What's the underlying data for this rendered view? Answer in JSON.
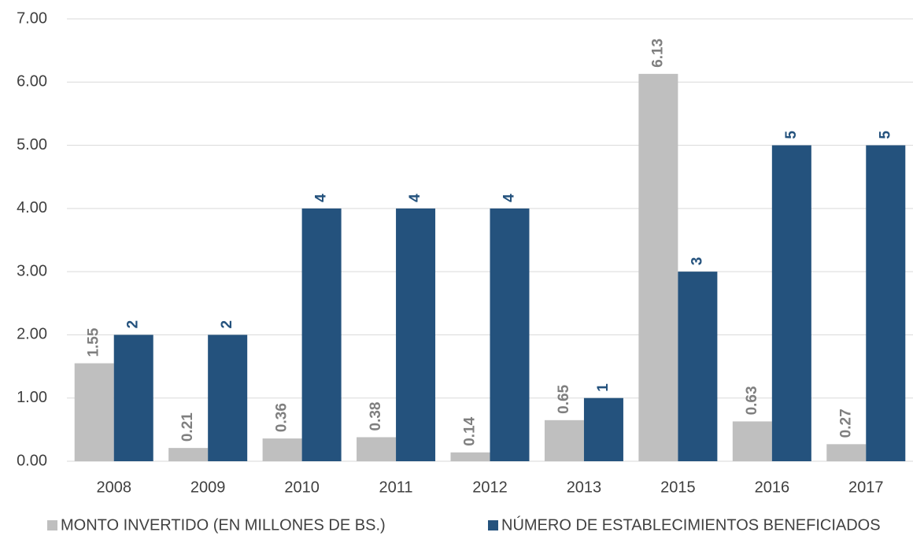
{
  "chart_data": {
    "type": "bar",
    "categories": [
      "2008",
      "2009",
      "2010",
      "2011",
      "2012",
      "2013",
      "2015",
      "2016",
      "2017"
    ],
    "series": [
      {
        "name": "MONTO INVERTIDO (EN MILLONES DE BS.)",
        "color": "#bfbfbf",
        "label_color": "#7f7f7f",
        "values": [
          1.55,
          0.21,
          0.36,
          0.38,
          0.14,
          0.65,
          6.13,
          0.63,
          0.27
        ]
      },
      {
        "name": "NÚMERO DE ESTABLECIMIENTOS BENEFICIADOS",
        "color": "#24527d",
        "label_color": "#24527d",
        "values": [
          2,
          2,
          4,
          4,
          4,
          1,
          3,
          5,
          5
        ]
      }
    ],
    "ylim": [
      0,
      7
    ],
    "yticks": [
      {
        "value": 0,
        "label": "0.00"
      },
      {
        "value": 1,
        "label": "1.00"
      },
      {
        "value": 2,
        "label": "2.00"
      },
      {
        "value": 3,
        "label": "3.00"
      },
      {
        "value": 4,
        "label": "4.00"
      },
      {
        "value": 5,
        "label": "5.00"
      },
      {
        "value": 6,
        "label": "6.00"
      },
      {
        "value": 7,
        "label": "7.00"
      }
    ],
    "grid": true,
    "legend": "bottom"
  }
}
